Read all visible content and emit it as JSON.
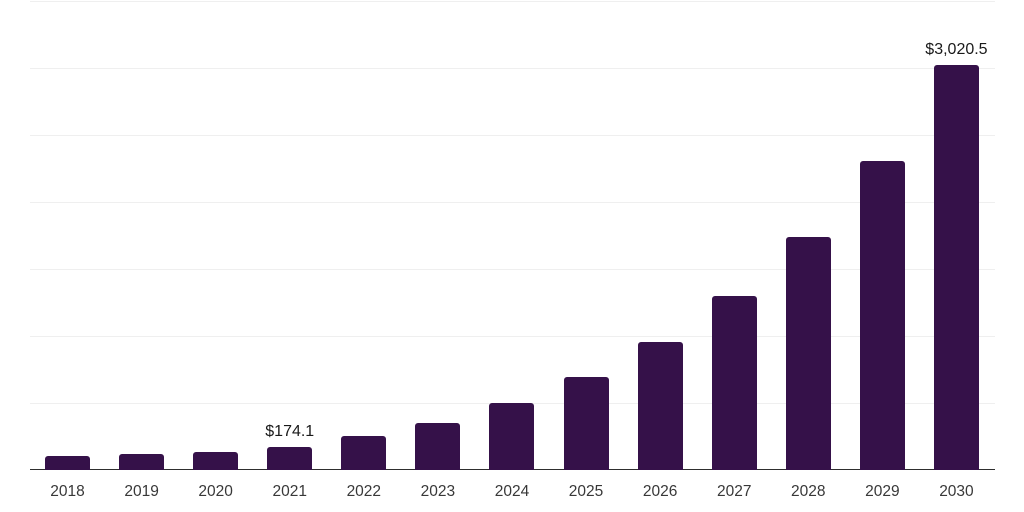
{
  "chart_style": {
    "background": "#ffffff",
    "bar_color": "#351149",
    "axis_color": "#2e2e2e",
    "gridline_color": "#efefef",
    "tick_label_color": "#383838",
    "data_label_color": "#1a1a1a"
  },
  "chart_data": {
    "type": "bar",
    "title": "",
    "xlabel": "",
    "ylabel": "",
    "categories": [
      "2018",
      "2019",
      "2020",
      "2021",
      "2022",
      "2023",
      "2024",
      "2025",
      "2026",
      "2027",
      "2028",
      "2029",
      "2030"
    ],
    "values": [
      104,
      119,
      132,
      174.1,
      254,
      348,
      498,
      693,
      954,
      1300,
      1736,
      2306,
      3020.5
    ],
    "data_labels": {
      "2021": "$174.1",
      "2030": "$3,020.5"
    },
    "ylim": [
      0,
      3500
    ],
    "grid_step": 500,
    "grid": "horizontal",
    "legend": "none"
  }
}
